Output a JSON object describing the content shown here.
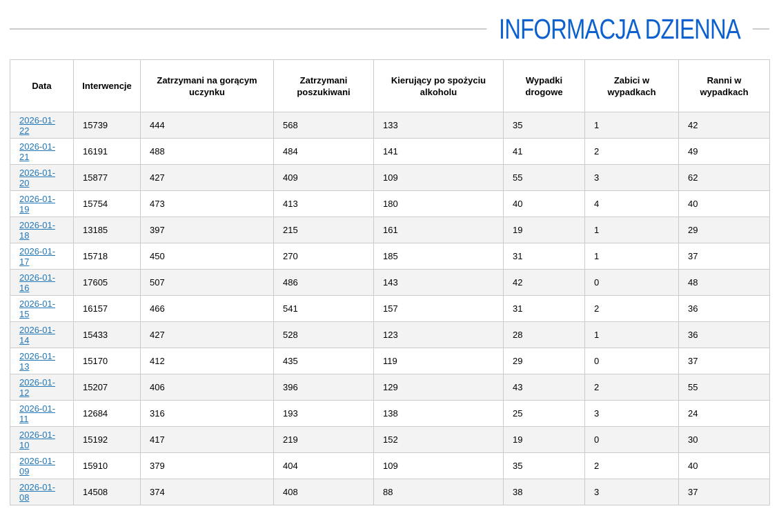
{
  "page": {
    "title": "INFORMACJA DZIENNA"
  },
  "colors": {
    "title_blue": "#0d61cf",
    "link_blue": "#2277b8",
    "row_stripe": "#f3f3f3",
    "border_gray": "#cbcbcb",
    "rule_gray": "#cccccc"
  },
  "table": {
    "columns": [
      "Data",
      "Interwencje",
      "Zatrzymani na gorącym uczynku",
      "Zatrzymani poszukiwani",
      "Kierujący po spożyciu alkoholu",
      "Wypadki drogowe",
      "Zabici w wypadkach",
      "Ranni w wypadkach"
    ],
    "rows": [
      {
        "date": "2026-01-22",
        "values": [
          15739,
          444,
          568,
          133,
          35,
          1,
          42
        ]
      },
      {
        "date": "2026-01-21",
        "values": [
          16191,
          488,
          484,
          141,
          41,
          2,
          49
        ]
      },
      {
        "date": "2026-01-20",
        "values": [
          15877,
          427,
          409,
          109,
          55,
          3,
          62
        ]
      },
      {
        "date": "2026-01-19",
        "values": [
          15754,
          473,
          413,
          180,
          40,
          4,
          40
        ]
      },
      {
        "date": "2026-01-18",
        "values": [
          13185,
          397,
          215,
          161,
          19,
          1,
          29
        ]
      },
      {
        "date": "2026-01-17",
        "values": [
          15718,
          450,
          270,
          185,
          31,
          1,
          37
        ]
      },
      {
        "date": "2026-01-16",
        "values": [
          17605,
          507,
          486,
          143,
          42,
          0,
          48
        ]
      },
      {
        "date": "2026-01-15",
        "values": [
          16157,
          466,
          541,
          157,
          31,
          2,
          36
        ]
      },
      {
        "date": "2026-01-14",
        "values": [
          15433,
          427,
          528,
          123,
          28,
          1,
          36
        ]
      },
      {
        "date": "2026-01-13",
        "values": [
          15170,
          412,
          435,
          119,
          29,
          0,
          37
        ]
      },
      {
        "date": "2026-01-12",
        "values": [
          15207,
          406,
          396,
          129,
          43,
          2,
          55
        ]
      },
      {
        "date": "2026-01-11",
        "values": [
          12684,
          316,
          193,
          138,
          25,
          3,
          24
        ]
      },
      {
        "date": "2026-01-10",
        "values": [
          15192,
          417,
          219,
          152,
          19,
          0,
          30
        ]
      },
      {
        "date": "2026-01-09",
        "values": [
          15910,
          379,
          404,
          109,
          35,
          2,
          40
        ]
      },
      {
        "date": "2026-01-08",
        "values": [
          14508,
          374,
          408,
          88,
          38,
          3,
          37
        ]
      }
    ]
  }
}
